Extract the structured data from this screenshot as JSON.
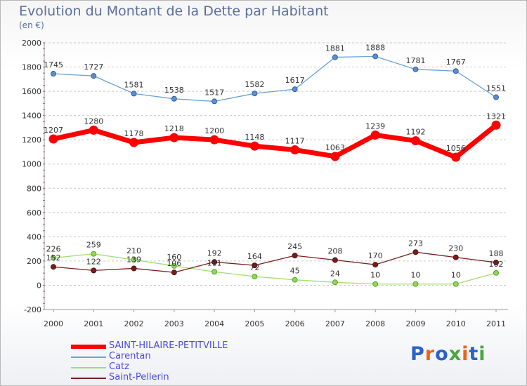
{
  "header": {
    "title": "Evolution du Montant de la Dette par Habitant",
    "subtitle": "(en €)"
  },
  "logo": {
    "text": "Proxiti",
    "colors": [
      "#2a62c8",
      "#e8641c",
      "#2a62c8",
      "#49a83c",
      "#e8641c",
      "#2a62c8",
      "#49a83c"
    ]
  },
  "chart_data": {
    "type": "line",
    "title": "Evolution du Montant de la Dette par Habitant",
    "subtitle": "(en €)",
    "xlabel": "",
    "ylabel": "",
    "x": [
      "2000",
      "2001",
      "2002",
      "2003",
      "2004",
      "2005",
      "2006",
      "2007",
      "2008",
      "2009",
      "2010",
      "2011"
    ],
    "ylim": [
      -200,
      2000
    ],
    "yticks": [
      "-200",
      "0",
      "200",
      "400",
      "600",
      "800",
      "1000",
      "1200",
      "1400",
      "1600",
      "1800",
      "2000"
    ],
    "grid": "horizontal dashed",
    "legend_position": "bottom-left",
    "series": [
      {
        "name": "SAINT-HILAIRE-PETITVILLE",
        "color": "#ff0000",
        "values": [
          1207,
          1280,
          1178,
          1218,
          1200,
          1148,
          1117,
          1063,
          1239,
          1192,
          1056,
          1321
        ],
        "labels": [
          "1207",
          "1280",
          "1178",
          "1218",
          "1200",
          "1148",
          "1117",
          "1063",
          "1239",
          "1192",
          "1056",
          "1321"
        ]
      },
      {
        "name": "Carentan",
        "color": "#6aa3d8",
        "values": [
          1745,
          1727,
          1581,
          1538,
          1517,
          1582,
          1617,
          1881,
          1888,
          1781,
          1767,
          1551
        ],
        "labels": [
          "1745",
          "1727",
          "1581",
          "1538",
          "1517",
          "1582",
          "1617",
          "1881",
          "1888",
          "1781",
          "1767",
          "1551"
        ]
      },
      {
        "name": "Catz",
        "color": "#9ee070",
        "values": [
          226,
          259,
          210,
          160,
          111,
          72,
          45,
          24,
          10,
          10,
          10,
          102
        ],
        "labels": [
          "226",
          "259",
          "210",
          "160",
          "111",
          "72",
          "45",
          "24",
          "10",
          "10",
          "10",
          "102"
        ]
      },
      {
        "name": "Saint-Pellerin",
        "color": "#7a2020",
        "values": [
          152,
          122,
          139,
          106,
          192,
          164,
          245,
          208,
          170,
          273,
          230,
          188
        ],
        "labels": [
          "152",
          "122",
          "139",
          "106",
          "192",
          "164",
          "245",
          "208",
          "170",
          "273",
          "230",
          "188"
        ]
      }
    ]
  }
}
